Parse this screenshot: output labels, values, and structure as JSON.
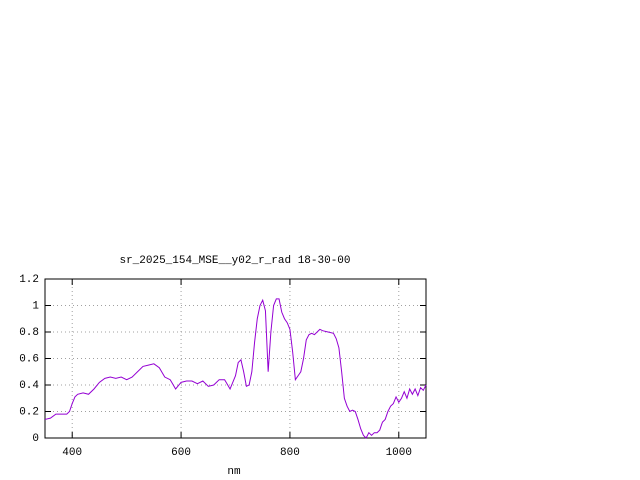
{
  "chart_data": {
    "type": "line",
    "title": "sr_2025_154_MSE__y02_r_rad 18-30-00",
    "x_label": "nm",
    "xlim": [
      350,
      1050
    ],
    "xticks": [
      400,
      600,
      800,
      1000
    ],
    "ylim": [
      0,
      1.2
    ],
    "yticks": [
      0,
      0.2,
      0.4,
      0.6,
      0.8,
      1,
      1.2
    ],
    "grid": true,
    "x": [
      350,
      360,
      370,
      380,
      390,
      395,
      400,
      405,
      410,
      420,
      430,
      440,
      450,
      460,
      470,
      480,
      490,
      500,
      510,
      520,
      530,
      540,
      550,
      560,
      570,
      580,
      590,
      600,
      610,
      620,
      630,
      640,
      650,
      660,
      670,
      680,
      690,
      700,
      705,
      710,
      715,
      720,
      725,
      730,
      735,
      740,
      745,
      750,
      755,
      760,
      765,
      770,
      775,
      780,
      785,
      790,
      795,
      800,
      805,
      810,
      815,
      820,
      825,
      830,
      835,
      840,
      845,
      850,
      855,
      860,
      870,
      880,
      885,
      890,
      895,
      900,
      905,
      910,
      915,
      920,
      925,
      930,
      935,
      940,
      945,
      950,
      955,
      960,
      965,
      970,
      975,
      980,
      985,
      990,
      995,
      1000,
      1005,
      1010,
      1015,
      1020,
      1025,
      1030,
      1035,
      1040,
      1045,
      1050
    ],
    "series": [
      {
        "color": "#9400d3",
        "values": [
          0.14,
          0.15,
          0.18,
          0.18,
          0.18,
          0.2,
          0.26,
          0.31,
          0.33,
          0.34,
          0.33,
          0.37,
          0.42,
          0.45,
          0.46,
          0.45,
          0.46,
          0.44,
          0.46,
          0.5,
          0.54,
          0.55,
          0.56,
          0.53,
          0.46,
          0.44,
          0.37,
          0.42,
          0.43,
          0.43,
          0.41,
          0.43,
          0.39,
          0.4,
          0.44,
          0.44,
          0.37,
          0.47,
          0.57,
          0.59,
          0.5,
          0.39,
          0.4,
          0.5,
          0.72,
          0.9,
          1.0,
          1.04,
          0.96,
          0.5,
          0.8,
          1.0,
          1.05,
          1.05,
          0.95,
          0.9,
          0.87,
          0.82,
          0.65,
          0.44,
          0.47,
          0.5,
          0.6,
          0.74,
          0.78,
          0.79,
          0.78,
          0.8,
          0.82,
          0.81,
          0.8,
          0.79,
          0.75,
          0.68,
          0.5,
          0.3,
          0.24,
          0.2,
          0.21,
          0.2,
          0.14,
          0.07,
          0.02,
          0.0,
          0.04,
          0.02,
          0.04,
          0.04,
          0.06,
          0.12,
          0.14,
          0.2,
          0.24,
          0.26,
          0.31,
          0.27,
          0.3,
          0.35,
          0.3,
          0.37,
          0.33,
          0.37,
          0.32,
          0.38,
          0.36,
          0.4
        ]
      }
    ]
  }
}
